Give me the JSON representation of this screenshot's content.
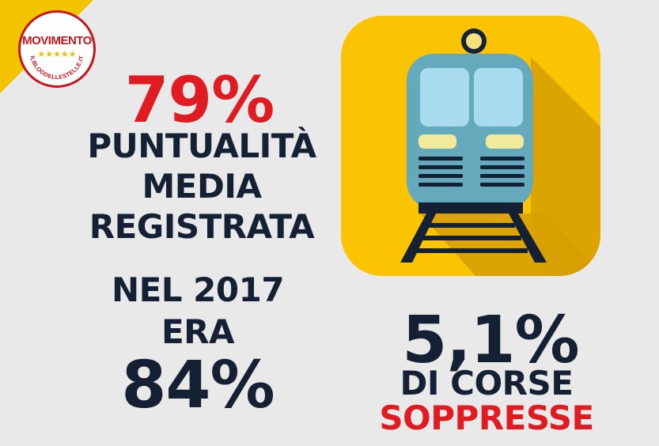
{
  "logo": {
    "word": "MOVIMENTO",
    "stars": "★★★★★",
    "url": "ILBLOGDELLESTELLE.IT"
  },
  "left": {
    "percent": "79%",
    "label_lines": [
      "PUNTUALITÀ",
      "MEDIA",
      "REGISTRATA"
    ],
    "compare_lines": [
      "NEL 2017",
      "ERA"
    ],
    "old_percent": "84%"
  },
  "right": {
    "percent": "5,1%",
    "label_line1": "DI CORSE",
    "label_line2": "SOPPRESSE"
  },
  "icon": "train-icon",
  "colors": {
    "red": "#e01c22",
    "navy": "#142134",
    "yellow": "#fbc402",
    "background": "#e9e9e9"
  }
}
